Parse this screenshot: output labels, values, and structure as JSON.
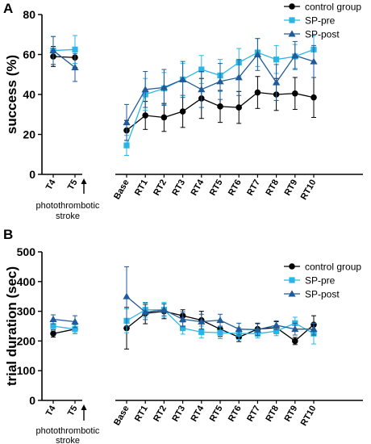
{
  "colors": {
    "control group": "#000000",
    "SP-pre": "#29b6e6",
    "SP-post": "#1f5a99"
  },
  "chart_data": [
    {
      "type": "line",
      "panel_label": "A",
      "ylabel": "success (%)",
      "ylim": [
        0,
        80
      ],
      "yticks": [
        "0",
        "20",
        "40",
        "60",
        "80"
      ],
      "categories": [
        "T4",
        "T5",
        "Base",
        "RT1",
        "RT2",
        "RT3",
        "RT4",
        "RT5",
        "RT6",
        "RT7",
        "RT8",
        "RT9",
        "RT10"
      ],
      "groups": [
        [
          0,
          1
        ],
        [
          2,
          3,
          4,
          5,
          6,
          7,
          8,
          9,
          10,
          11,
          12
        ]
      ],
      "legend_position": "top-right",
      "annotation": "photothrombotic stroke",
      "series": [
        {
          "name": "control group",
          "marker": "circle",
          "values": [
            59,
            58.5,
            22,
            29.5,
            28.5,
            31.5,
            38,
            34,
            33.5,
            41,
            40,
            40.5,
            38.5
          ],
          "errors": [
            5,
            5,
            5,
            7,
            7,
            8,
            10,
            8,
            8,
            8,
            8,
            8,
            10
          ]
        },
        {
          "name": "SP-pre",
          "marker": "square",
          "values": [
            62,
            62.5,
            14.5,
            40,
            43,
            47.5,
            52.5,
            49.5,
            56,
            61,
            57.5,
            59,
            62.5
          ],
          "errors": [
            7,
            7,
            5,
            8,
            8,
            8,
            7,
            8,
            7,
            7,
            7,
            6,
            7
          ]
        },
        {
          "name": "SP-post",
          "marker": "triangle",
          "values": [
            62,
            53.5,
            26,
            42.5,
            43.5,
            47.5,
            42.5,
            46.5,
            48.5,
            60,
            46,
            59.5,
            56.5
          ],
          "errors": [
            7,
            7,
            9,
            9,
            9,
            9,
            9,
            9,
            9,
            8,
            9,
            7,
            8
          ]
        }
      ]
    },
    {
      "type": "line",
      "panel_label": "B",
      "ylabel": "trial duration (sec)",
      "ylim": [
        0,
        500
      ],
      "yticks": [
        "0",
        "100",
        "200",
        "300",
        "400",
        "500"
      ],
      "categories": [
        "T4",
        "T5",
        "Base",
        "RT1",
        "RT2",
        "RT3",
        "RT4",
        "RT5",
        "RT6",
        "RT7",
        "RT8",
        "RT9",
        "RT10"
      ],
      "groups": [
        [
          0,
          1
        ],
        [
          2,
          3,
          4,
          5,
          6,
          7,
          8,
          9,
          10,
          11,
          12
        ]
      ],
      "legend_position": "top-right",
      "annotation": "photothrombotic stroke",
      "series": [
        {
          "name": "control group",
          "marker": "circle",
          "values": [
            225,
            240,
            243,
            293,
            300,
            285,
            270,
            240,
            213,
            240,
            245,
            200,
            255
          ],
          "errors": [
            12,
            15,
            70,
            35,
            25,
            20,
            30,
            25,
            15,
            20,
            20,
            12,
            30
          ]
        },
        {
          "name": "SP-pre",
          "marker": "square",
          "values": [
            250,
            240,
            268,
            305,
            305,
            243,
            230,
            228,
            225,
            225,
            233,
            260,
            225
          ],
          "errors": [
            15,
            15,
            40,
            25,
            25,
            20,
            20,
            20,
            20,
            15,
            15,
            20,
            35
          ]
        },
        {
          "name": "SP-post",
          "marker": "triangle",
          "values": [
            273,
            265,
            350,
            297,
            305,
            273,
            265,
            270,
            240,
            238,
            253,
            240,
            240
          ],
          "errors": [
            15,
            20,
            100,
            25,
            20,
            25,
            25,
            20,
            20,
            20,
            15,
            20,
            20
          ]
        }
      ]
    }
  ]
}
